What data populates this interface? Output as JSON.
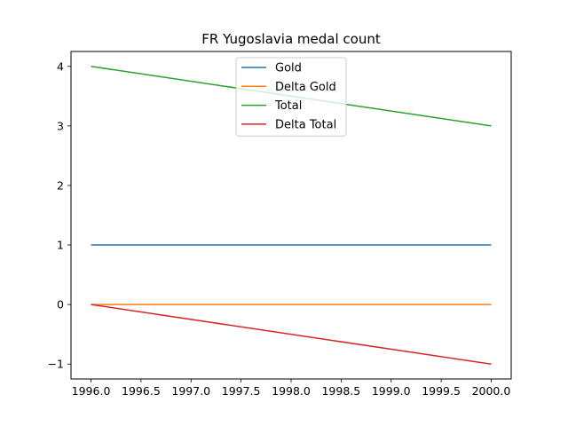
{
  "chart_data": {
    "type": "line",
    "title": "FR Yugoslavia medal count",
    "xlabel": "",
    "ylabel": "",
    "x": [
      1996,
      2000
    ],
    "xlim": [
      1995.8,
      2000.2
    ],
    "ylim": [
      -1.25,
      4.25
    ],
    "xticks": [
      1996.0,
      1996.5,
      1997.0,
      1997.5,
      1998.0,
      1998.5,
      1999.0,
      1999.5,
      2000.0
    ],
    "xtick_labels": [
      "1996.0",
      "1996.5",
      "1997.0",
      "1997.5",
      "1998.0",
      "1998.5",
      "1999.0",
      "1999.5",
      "2000.0"
    ],
    "yticks": [
      -1,
      0,
      1,
      2,
      3,
      4
    ],
    "ytick_labels": [
      "−1",
      "0",
      "1",
      "2",
      "3",
      "4"
    ],
    "grid": false,
    "legend_position": "upper-center",
    "series": [
      {
        "name": "Gold",
        "values": [
          1,
          1
        ],
        "color": "#1f77b4"
      },
      {
        "name": "Delta Gold",
        "values": [
          0,
          0
        ],
        "color": "#ff7f0e"
      },
      {
        "name": "Total",
        "values": [
          4,
          3
        ],
        "color": "#2ca02c"
      },
      {
        "name": "Delta Total",
        "values": [
          0,
          -1
        ],
        "color": "#d62728"
      }
    ]
  }
}
